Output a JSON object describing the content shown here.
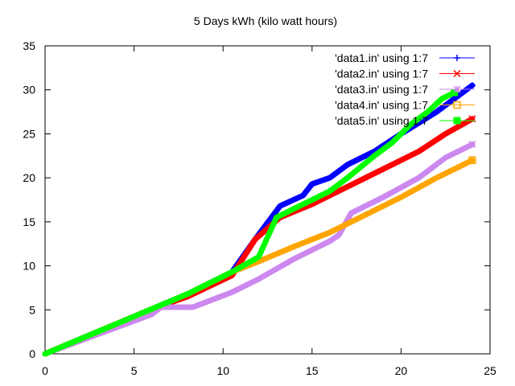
{
  "chart_data": {
    "type": "line",
    "title": "5 Days kWh (kilo watt hours)",
    "xlabel": "",
    "ylabel": "",
    "xlim": [
      0,
      25
    ],
    "ylim": [
      0,
      35
    ],
    "x_ticks": [
      0,
      5,
      10,
      15,
      20,
      25
    ],
    "y_ticks": [
      0,
      5,
      10,
      15,
      20,
      25,
      30,
      35
    ],
    "grid": false,
    "legend_position": "top-right",
    "series": [
      {
        "name": "'data1.in' using 1:7",
        "color": "#0000ff",
        "marker": "plus",
        "points": [
          [
            0,
            0
          ],
          [
            2,
            1.7
          ],
          [
            4,
            3.4
          ],
          [
            6,
            5.1
          ],
          [
            8,
            6.8
          ],
          [
            10.5,
            9.3
          ],
          [
            11.8,
            13.0
          ],
          [
            13.2,
            16.8
          ],
          [
            14.5,
            18.0
          ],
          [
            15.0,
            19.3
          ],
          [
            16.0,
            20.0
          ],
          [
            17.0,
            21.5
          ],
          [
            18.5,
            23.0
          ],
          [
            20.0,
            25.0
          ],
          [
            22.0,
            27.5
          ],
          [
            24.0,
            30.5
          ]
        ]
      },
      {
        "name": "'data2.in' using 1:7",
        "color": "#ff0000",
        "marker": "x",
        "points": [
          [
            0,
            0
          ],
          [
            2,
            1.7
          ],
          [
            4,
            3.4
          ],
          [
            6,
            5.1
          ],
          [
            8,
            6.5
          ],
          [
            10.5,
            8.9
          ],
          [
            11.8,
            13.0
          ],
          [
            13.2,
            15.5
          ],
          [
            15.0,
            17.0
          ],
          [
            17.0,
            19.0
          ],
          [
            19.0,
            21.0
          ],
          [
            21.0,
            23.0
          ],
          [
            22.5,
            25.0
          ],
          [
            24.0,
            26.7
          ]
        ]
      },
      {
        "name": "'data3.in' using 1:7",
        "color": "#cc88ee",
        "marker": "star",
        "points": [
          [
            0,
            0
          ],
          [
            2,
            1.5
          ],
          [
            4,
            3.0
          ],
          [
            6,
            4.5
          ],
          [
            6.5,
            5.3
          ],
          [
            8.3,
            5.3
          ],
          [
            10.5,
            7.0
          ],
          [
            12.0,
            8.5
          ],
          [
            14.0,
            10.8
          ],
          [
            16.0,
            12.8
          ],
          [
            16.5,
            13.5
          ],
          [
            17.2,
            16.0
          ],
          [
            19.0,
            17.8
          ],
          [
            21.0,
            20.0
          ],
          [
            22.5,
            22.3
          ],
          [
            24.0,
            23.8
          ]
        ]
      },
      {
        "name": "'data4.in' using 1:7",
        "color": "#ffa500",
        "marker": "square",
        "points": [
          [
            0,
            0
          ],
          [
            2,
            1.7
          ],
          [
            4,
            3.4
          ],
          [
            6,
            5.1
          ],
          [
            8,
            6.8
          ],
          [
            10.5,
            9.3
          ],
          [
            12,
            10.5
          ],
          [
            14,
            12.2
          ],
          [
            16,
            13.8
          ],
          [
            18,
            15.8
          ],
          [
            20,
            17.8
          ],
          [
            22,
            20.0
          ],
          [
            24,
            22.0
          ]
        ]
      },
      {
        "name": "'data5.in' using 1:7",
        "color": "#00ff00",
        "marker": "filled-square",
        "points": [
          [
            0,
            0
          ],
          [
            2,
            1.7
          ],
          [
            4,
            3.4
          ],
          [
            6,
            5.1
          ],
          [
            8,
            6.8
          ],
          [
            10.5,
            9.3
          ],
          [
            12,
            11.0
          ],
          [
            13.0,
            15.5
          ],
          [
            14.0,
            16.5
          ],
          [
            16.0,
            18.5
          ],
          [
            17.0,
            20.0
          ],
          [
            18.5,
            22.5
          ],
          [
            19.5,
            24.0
          ],
          [
            20.5,
            26.0
          ],
          [
            21.5,
            27.5
          ],
          [
            22.3,
            29.0
          ],
          [
            23.0,
            29.7
          ]
        ]
      }
    ]
  }
}
